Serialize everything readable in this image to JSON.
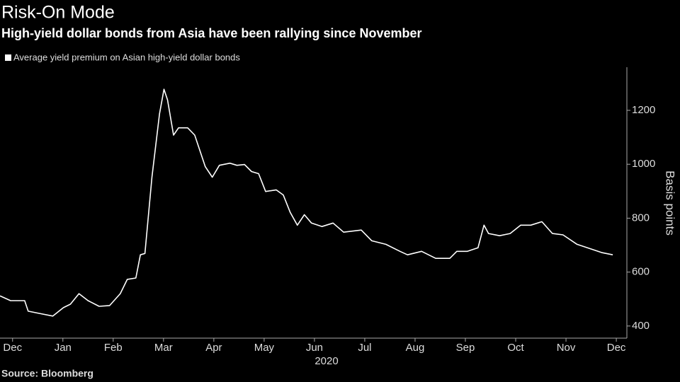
{
  "chart_data": {
    "type": "line",
    "title": "Risk-On Mode",
    "subtitle": "High-yield dollar bonds from Asia have been rallying since November",
    "y_label": "Basis points",
    "x_group_label": "2020",
    "source": "Source: Bloomberg",
    "x": [
      -0.25,
      -0.04,
      0.24,
      0.31,
      0.52,
      0.8,
      1.01,
      1.15,
      1.32,
      1.5,
      1.72,
      1.93,
      2.14,
      2.28,
      2.45,
      2.54,
      2.63,
      2.77,
      2.92,
      3.01,
      3.08,
      3.2,
      3.3,
      3.48,
      3.62,
      3.83,
      3.97,
      4.11,
      4.32,
      4.46,
      4.61,
      4.75,
      4.89,
      5.03,
      5.24,
      5.38,
      5.52,
      5.66,
      5.8,
      5.94,
      6.15,
      6.37,
      6.58,
      6.93,
      7.14,
      7.42,
      7.7,
      7.85,
      8.13,
      8.41,
      8.69,
      8.83,
      9.04,
      9.25,
      9.37,
      9.46,
      9.68,
      9.89,
      10.1,
      10.3,
      10.52,
      10.73,
      10.94,
      11.22,
      11.51,
      11.72,
      11.93
    ],
    "series": [
      {
        "name": "Average yield premium on Asian high-yield dollar bonds",
        "color": "#ffffff",
        "values": [
          512,
          494,
          494,
          455,
          447,
          437,
          468,
          481,
          520,
          494,
          473,
          476,
          520,
          573,
          578,
          664,
          669,
          952,
          1187,
          1278,
          1239,
          1108,
          1135,
          1135,
          1108,
          991,
          952,
          996,
          1004,
          996,
          999,
          973,
          965,
          899,
          905,
          886,
          821,
          774,
          813,
          782,
          769,
          782,
          748,
          756,
          716,
          703,
          677,
          664,
          677,
          651,
          651,
          677,
          677,
          690,
          774,
          743,
          735,
          743,
          774,
          774,
          787,
          743,
          738,
          703,
          685,
          672,
          664
        ]
      }
    ],
    "xlim": [
      -0.25,
      12.21
    ],
    "xticks": [
      {
        "value": 0,
        "label": "Dec"
      },
      {
        "value": 1,
        "label": "Jan"
      },
      {
        "value": 2,
        "label": "Feb"
      },
      {
        "value": 3,
        "label": "Mar"
      },
      {
        "value": 4,
        "label": "Apr"
      },
      {
        "value": 5,
        "label": "May"
      },
      {
        "value": 6,
        "label": "Jun"
      },
      {
        "value": 7,
        "label": "Jul"
      },
      {
        "value": 8,
        "label": "Aug"
      },
      {
        "value": 9,
        "label": "Sep"
      },
      {
        "value": 10,
        "label": "Oct"
      },
      {
        "value": 11,
        "label": "Nov"
      },
      {
        "value": 12,
        "label": "Dec"
      }
    ],
    "ylim": [
      355,
      1360
    ],
    "yticks": [
      400,
      600,
      800,
      1000,
      1200
    ],
    "grid": false
  }
}
